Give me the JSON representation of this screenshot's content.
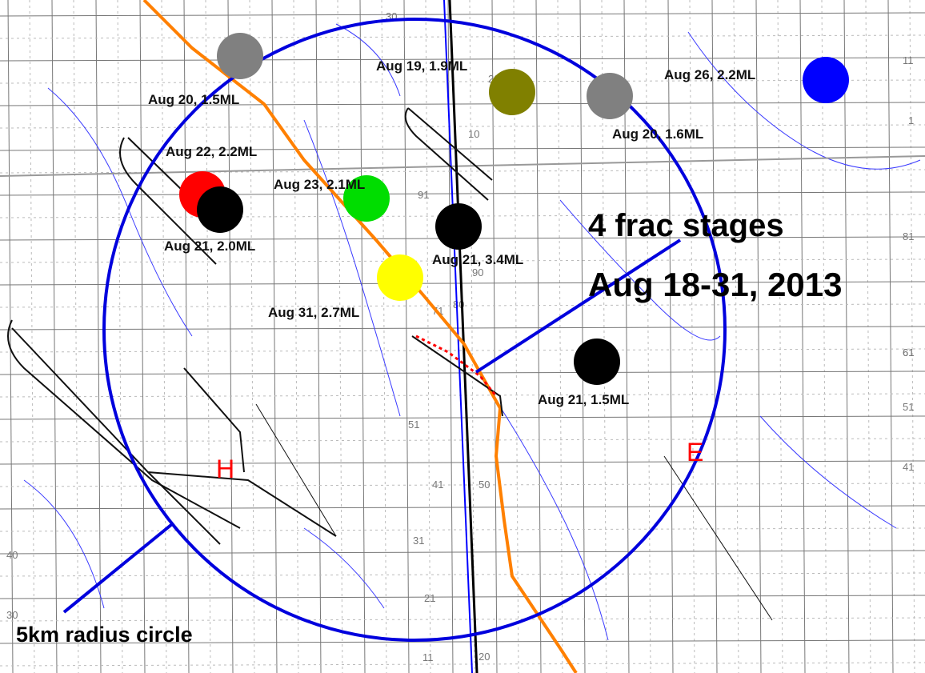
{
  "map": {
    "events": [
      {
        "label": "Aug 20, 1.5ML",
        "color": "#808080"
      },
      {
        "label": "Aug 19, 1.9ML",
        "color": "#808000"
      },
      {
        "label": "Aug 20, 1.6ML",
        "color": "#808080"
      },
      {
        "label": "Aug 26, 2.2ML",
        "color": "#0000ff"
      },
      {
        "label": "Aug 22, 2.2ML",
        "color": "#ff0000"
      },
      {
        "label": "Aug 21, 2.0ML",
        "color": "#000000"
      },
      {
        "label": "Aug 23, 2.1ML",
        "color": "#00dd00"
      },
      {
        "label": "Aug 21, 3.4ML",
        "color": "#000000"
      },
      {
        "label": "Aug 31, 2.7ML",
        "color": "#ffff00"
      },
      {
        "label": "Aug 21, 1.5ML",
        "color": "#000000"
      }
    ],
    "annotations": {
      "stages": "4 frac stages",
      "dates": "Aug 18-31, 2013",
      "radius": "5km radius circle"
    },
    "wells": {
      "h": "H",
      "e": "E"
    },
    "grid_numbers": [
      "30",
      "20",
      "10",
      "91",
      "90",
      "80",
      "71",
      "61",
      "51",
      "50",
      "41",
      "40",
      "31",
      "30",
      "21",
      "20",
      "11",
      "11",
      "1",
      "81",
      "61",
      "51",
      "41"
    ]
  }
}
